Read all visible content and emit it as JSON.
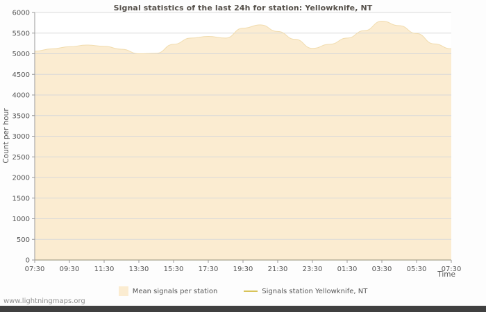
{
  "page": {
    "footer_link": "www.lightningmaps.org"
  },
  "chart_data": {
    "type": "area",
    "title": "Signal statistics of the last 24h for station: Yellowknife, NT",
    "xlabel": "Time",
    "ylabel": "Count per hour",
    "ylim": [
      0,
      6000
    ],
    "ytick_step": 500,
    "yticklabels": [
      "0",
      "500",
      "1000",
      "1500",
      "2000",
      "2500",
      "3000",
      "3500",
      "4000",
      "4500",
      "5000",
      "5500",
      "6000"
    ],
    "xticklabels": [
      "07:30",
      "09:30",
      "11:30",
      "13:30",
      "15:30",
      "17:30",
      "19:30",
      "21:30",
      "23:30",
      "01:30",
      "03:30",
      "05:30",
      "07:30"
    ],
    "grid": true,
    "legend_position": "bottom",
    "colors": {
      "grid": "#d9d9d9",
      "axis": "#999999",
      "area_edge": "#f1dcae",
      "plot_background": "#ffffff"
    },
    "series": [
      {
        "name": "Mean signals per station",
        "type": "area",
        "color": "#fbecd1",
        "values": [
          5060,
          5120,
          5170,
          5210,
          5180,
          5110,
          5000,
          5010,
          5230,
          5380,
          5420,
          5380,
          5620,
          5700,
          5540,
          5350,
          5130,
          5230,
          5380,
          5560,
          5790,
          5680,
          5490,
          5240,
          5120
        ]
      },
      {
        "name": "Signals station Yellowknife, NT",
        "type": "line",
        "color": "#d8c359",
        "values": [
          0,
          0,
          0,
          0,
          0,
          0,
          0,
          0,
          0,
          0,
          0,
          0,
          0,
          0,
          0,
          0,
          0,
          0,
          0,
          0,
          0,
          0,
          0,
          0,
          0
        ]
      }
    ]
  }
}
